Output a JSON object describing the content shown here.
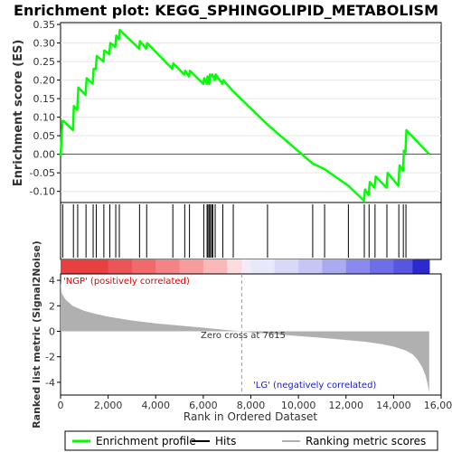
{
  "chart_data": [
    {
      "type": "line",
      "title": "Enrichment plot: KEGG_SPHINGOLIPID_METABOLISM",
      "ylabel": "Enrichment score (ES)",
      "ylim": [
        -0.13,
        0.355
      ],
      "yticks": [
        0.35,
        0.3,
        0.25,
        0.2,
        0.15,
        0.1,
        0.05,
        0.0,
        -0.05,
        -0.1
      ],
      "ytick_labels": [
        "0.35",
        "0.30",
        "0.25",
        "0.20",
        "0.15",
        "0.10",
        "0.05",
        "0.00",
        "-0.05",
        "-0.10"
      ],
      "xlim": [
        0,
        16000
      ],
      "series": [
        {
          "name": "Enrichment profile",
          "color": "#00ff00",
          "x": [
            0,
            80,
            120,
            520,
            560,
            700,
            750,
            1050,
            1100,
            1350,
            1390,
            1480,
            1520,
            1800,
            1840,
            2050,
            2090,
            2300,
            2340,
            2450,
            2490,
            3300,
            3340,
            3600,
            3640,
            4700,
            4740,
            5200,
            5240,
            5400,
            5440,
            6000,
            6040,
            6150,
            6180,
            6250,
            6280,
            6350,
            6380,
            6480,
            6520,
            6800,
            6840,
            7250,
            8700,
            10600,
            11100,
            12100,
            12750,
            12800,
            12950,
            13000,
            13200,
            13250,
            13700,
            13750,
            14200,
            14250,
            14400,
            14430,
            14500,
            14540,
            15500
          ],
          "y": [
            -0.005,
            0.09,
            0.09,
            0.065,
            0.13,
            0.12,
            0.18,
            0.16,
            0.205,
            0.19,
            0.23,
            0.23,
            0.265,
            0.25,
            0.28,
            0.27,
            0.3,
            0.29,
            0.32,
            0.31,
            0.335,
            0.285,
            0.305,
            0.285,
            0.3,
            0.23,
            0.245,
            0.215,
            0.225,
            0.21,
            0.225,
            0.19,
            0.205,
            0.19,
            0.21,
            0.19,
            0.215,
            0.21,
            0.215,
            0.2,
            0.215,
            0.19,
            0.2,
            0.17,
            0.08,
            -0.025,
            -0.04,
            -0.085,
            -0.125,
            -0.095,
            -0.11,
            -0.075,
            -0.09,
            -0.06,
            -0.09,
            -0.05,
            -0.085,
            -0.03,
            -0.045,
            0.01,
            0.005,
            0.065,
            0.0
          ]
        }
      ]
    },
    {
      "type": "scatter",
      "series": [
        {
          "name": "Hits",
          "color": "#000000",
          "x": [
            90,
            540,
            720,
            1070,
            1370,
            1500,
            1820,
            2070,
            2320,
            2470,
            3320,
            3620,
            4720,
            5220,
            5420,
            6020,
            6160,
            6200,
            6260,
            6300,
            6360,
            6400,
            6500,
            6820,
            7260,
            8700,
            10600,
            11100,
            12100,
            12770,
            12970,
            13220,
            13720,
            14220,
            14410,
            14520
          ]
        }
      ]
    },
    {
      "type": "heatmap",
      "x": [
        0,
        2000,
        3000,
        4000,
        5000,
        6000,
        7000,
        7615,
        8000,
        9000,
        10000,
        11000,
        12000,
        13000,
        14000,
        14800,
        15500
      ],
      "colors": [
        "#e8403f",
        "#ec5456",
        "#f06a6c",
        "#f38384",
        "#f79c9d",
        "#fab8b9",
        "#fcdcdc",
        "#f4eaf8",
        "#e8e8fb",
        "#d8d8f7",
        "#c6c6f4",
        "#aaaaf2",
        "#8a8aee",
        "#6e6ee8",
        "#5656e2",
        "#2a2ad0"
      ],
      "annotations": [
        "'NGP' (positively correlated)",
        "'LG' (negatively correlated)",
        "Zero cross at 7615"
      ]
    },
    {
      "type": "area",
      "ylabel": "Ranked list metric (Signal2Noise)",
      "xlabel": "Rank in Ordered Dataset",
      "ylim": [
        -5,
        4.5
      ],
      "yticks": [
        4,
        2,
        0,
        -2,
        -4
      ],
      "ytick_labels": [
        "4",
        "2",
        "0",
        "-2",
        "-4"
      ],
      "xticks": [
        0,
        2000,
        4000,
        6000,
        8000,
        10000,
        12000,
        14000,
        16000
      ],
      "xtick_labels": [
        "0",
        "2,000",
        "4,000",
        "6,000",
        "8,000",
        "10,000",
        "12,000",
        "14,000",
        "16,000"
      ],
      "xlim": [
        0,
        16000
      ],
      "zero_cross": 7615,
      "series": [
        {
          "name": "Ranking metric scores",
          "color": "#b0b0b0",
          "x": [
            0,
            50,
            200,
            500,
            1000,
            1500,
            2000,
            3000,
            4000,
            5000,
            6000,
            7000,
            7615,
            8000,
            9000,
            10000,
            11000,
            12000,
            12800,
            13500,
            14000,
            14500,
            14800,
            15000,
            15200,
            15350,
            15450,
            15500
          ],
          "y": [
            3.9,
            3.0,
            2.5,
            2.0,
            1.6,
            1.35,
            1.15,
            0.85,
            0.62,
            0.45,
            0.28,
            0.1,
            0.0,
            -0.08,
            -0.22,
            -0.38,
            -0.52,
            -0.68,
            -0.82,
            -1.0,
            -1.2,
            -1.5,
            -1.8,
            -2.2,
            -2.8,
            -3.5,
            -4.3,
            -4.8
          ]
        }
      ]
    }
  ],
  "legend": {
    "items": [
      {
        "label": "Enrichment profile",
        "color": "#00ff00"
      },
      {
        "label": "Hits",
        "color": "#000000"
      },
      {
        "label": "Ranking metric scores",
        "color": "#b0b0b0"
      }
    ]
  }
}
